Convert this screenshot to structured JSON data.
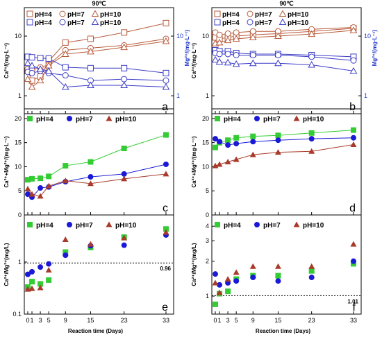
{
  "chart_data": [
    {
      "id": "a",
      "type": "line",
      "scale": "log",
      "title": "90℃",
      "letter": "a",
      "ylabel": "Ca²⁺/(mg·L⁻¹)",
      "y2label": "Mg²⁺/(mg·L⁻¹)",
      "ylim": [
        0.5,
        30
      ],
      "yticks": [
        1,
        10
      ],
      "yticklabels": [
        "1",
        "10"
      ],
      "y2ticks": [
        1,
        10
      ],
      "y2ticklabels": [
        "1",
        "10"
      ],
      "x": [
        0,
        1,
        3,
        5,
        9,
        15,
        23,
        33
      ],
      "series": [
        {
          "name": "pH=4",
          "group": "Ca",
          "color": "#b85a3a",
          "marker": "square-open",
          "values": [
            2.6,
            1.8,
            2.1,
            3.8,
            7.8,
            9.0,
            11.5,
            16.5
          ]
        },
        {
          "name": "pH=7",
          "group": "Ca",
          "color": "#b85a3a",
          "marker": "circle-open",
          "values": [
            2.8,
            2.7,
            3.0,
            3.3,
            5.8,
            6.3,
            7.0,
            9.0
          ]
        },
        {
          "name": "pH=10",
          "group": "Ca",
          "color": "#b85a3a",
          "marker": "triangle-open",
          "values": [
            1.9,
            1.4,
            1.8,
            3.2,
            5.0,
            5.5,
            6.5,
            8.2
          ]
        },
        {
          "name": "pH=4",
          "group": "Mg",
          "color": "#3c3cc8",
          "marker": "square-open",
          "values": [
            4.5,
            4.4,
            4.3,
            4.2,
            3.0,
            2.9,
            2.9,
            2.4
          ]
        },
        {
          "name": "pH=7",
          "group": "Mg",
          "color": "#3c3cc8",
          "marker": "circle-open",
          "values": [
            2.5,
            2.4,
            2.6,
            2.4,
            2.2,
            1.8,
            1.9,
            1.8
          ]
        },
        {
          "name": "pH=10",
          "group": "Mg",
          "color": "#3c3cc8",
          "marker": "triangle-open",
          "values": [
            3.5,
            3.2,
            2.8,
            2.6,
            1.4,
            1.5,
            1.5,
            1.4
          ]
        }
      ]
    },
    {
      "id": "b",
      "type": "line",
      "scale": "log",
      "title": "90℃",
      "letter": "b",
      "ylabel": "Ca²⁺/(mg·L⁻¹)",
      "y2label": "Mg²⁺/(mg·L⁻¹)",
      "ylim": [
        0.5,
        30
      ],
      "yticks": [
        1,
        10
      ],
      "yticklabels": [
        "1",
        "10"
      ],
      "y2ticks": [
        1,
        10
      ],
      "y2ticklabels": [
        "1",
        "10"
      ],
      "x": [
        0,
        1,
        3,
        5,
        9,
        15,
        23,
        33
      ],
      "series": [
        {
          "name": "pH=4",
          "group": "Ca",
          "color": "#b85a3a",
          "marker": "square-open",
          "values": [
            9.5,
            9.0,
            9.5,
            10.0,
            10.5,
            11.0,
            12.0,
            13.5
          ]
        },
        {
          "name": "pH=7",
          "group": "Ca",
          "color": "#b85a3a",
          "marker": "circle-open",
          "values": [
            11.5,
            10.5,
            11.0,
            11.5,
            12.0,
            12.0,
            13.0,
            14.0
          ]
        },
        {
          "name": "pH=10",
          "group": "Ca",
          "color": "#b85a3a",
          "marker": "triangle-open",
          "values": [
            7.5,
            7.8,
            8.5,
            9.0,
            9.5,
            10.0,
            10.8,
            12.5
          ]
        },
        {
          "name": "pH=4",
          "group": "Mg",
          "color": "#3c3cc8",
          "marker": "square-open",
          "values": [
            5.8,
            5.6,
            5.6,
            5.2,
            5.0,
            5.0,
            4.8,
            4.5
          ]
        },
        {
          "name": "pH=7",
          "group": "Mg",
          "color": "#3c3cc8",
          "marker": "circle-open",
          "values": [
            5.2,
            5.0,
            5.0,
            4.8,
            4.8,
            4.8,
            4.5,
            3.9
          ]
        },
        {
          "name": "pH=10",
          "group": "Mg",
          "color": "#3c3cc8",
          "marker": "triangle-open",
          "values": [
            4.0,
            3.7,
            3.6,
            3.4,
            3.5,
            3.5,
            3.3,
            2.6
          ]
        }
      ]
    },
    {
      "id": "c",
      "type": "line",
      "scale": "linear",
      "letter": "c",
      "ylabel": "Ca²⁺+Mg²⁺/(mg·L⁻¹)",
      "ylim": [
        0,
        22
      ],
      "yticks": [
        0,
        5,
        10,
        15,
        20
      ],
      "yticklabels": [
        "0",
        "5",
        "10",
        "15",
        "20"
      ],
      "x": [
        0,
        1,
        3,
        5,
        9,
        15,
        23,
        33
      ],
      "series": [
        {
          "name": "pH=4",
          "color": "#33cc33",
          "marker": "square",
          "values": [
            7.3,
            7.5,
            7.6,
            8.0,
            10.2,
            11.0,
            13.8,
            16.6
          ]
        },
        {
          "name": "pH=7",
          "color": "#1a1ad6",
          "marker": "circle",
          "values": [
            4.3,
            3.7,
            5.6,
            5.8,
            6.9,
            7.9,
            8.5,
            10.5
          ]
        },
        {
          "name": "pH=10",
          "color": "#a83a2a",
          "marker": "triangle",
          "values": [
            5.4,
            4.3,
            3.9,
            6.0,
            7.1,
            6.5,
            7.5,
            8.5
          ]
        }
      ]
    },
    {
      "id": "d",
      "type": "line",
      "scale": "linear",
      "letter": "d",
      "ylabel": "Ca²⁺+Mg²⁺/(mg·L⁻¹)",
      "ylim": [
        0,
        22
      ],
      "yticks": [
        0,
        5,
        10,
        15,
        20
      ],
      "yticklabels": [
        "0",
        "5",
        "10",
        "15",
        "20"
      ],
      "x": [
        0,
        1,
        3,
        5,
        9,
        15,
        23,
        33
      ],
      "series": [
        {
          "name": "pH=4",
          "color": "#33cc33",
          "marker": "square",
          "values": [
            14.0,
            15.0,
            15.5,
            16.0,
            16.3,
            16.5,
            17.0,
            17.6
          ]
        },
        {
          "name": "pH=7",
          "color": "#1a1ad6",
          "marker": "circle",
          "values": [
            15.8,
            15.2,
            14.5,
            14.8,
            15.2,
            15.5,
            15.8,
            16.0
          ]
        },
        {
          "name": "pH=10",
          "color": "#a83a2a",
          "marker": "triangle",
          "values": [
            10.2,
            10.5,
            11.0,
            11.5,
            12.5,
            13.0,
            13.2,
            14.6
          ]
        }
      ]
    },
    {
      "id": "e",
      "type": "scatter",
      "scale": "log",
      "letter": "e",
      "ylabel": "Ca²⁺/Mg²⁺(mg/L)",
      "xlabel": "Reaction time (Days)",
      "ylim": [
        0.1,
        8
      ],
      "yticks": [
        0.1,
        1
      ],
      "yticklabels": [
        "0.1",
        "1"
      ],
      "reference": {
        "value": 0.96,
        "label": "0.96"
      },
      "x": [
        0,
        1,
        3,
        5,
        9,
        15,
        23,
        33
      ],
      "xticklabels": [
        "0",
        "1",
        "3",
        "5",
        "9",
        "15",
        "23",
        "33"
      ],
      "series": [
        {
          "name": "pH=4",
          "color": "#33cc33",
          "marker": "square",
          "values": [
            0.33,
            0.42,
            0.38,
            0.45,
            1.55,
            1.9,
            3.0,
            4.3
          ]
        },
        {
          "name": "pH=7",
          "color": "#1a1ad6",
          "marker": "circle",
          "values": [
            0.58,
            0.65,
            0.8,
            0.92,
            1.35,
            2.05,
            2.1,
            3.3
          ]
        },
        {
          "name": "pH=10",
          "color": "#a83a2a",
          "marker": "triangle",
          "values": [
            0.3,
            0.31,
            0.32,
            0.7,
            2.7,
            2.2,
            2.9,
            3.7
          ]
        }
      ]
    },
    {
      "id": "f",
      "type": "scatter",
      "scale": "log",
      "letter": "f",
      "ylabel": "Ca²⁺/Mg²⁺(mg/L)",
      "xlabel": "Reaction time (Days)",
      "ylim": [
        0.7,
        5
      ],
      "yticks": [
        1,
        2,
        3,
        4
      ],
      "yticklabels": [
        "1",
        "2",
        "3",
        "4"
      ],
      "reference": {
        "value": 1.01,
        "label": "1.01"
      },
      "x": [
        0,
        1,
        3,
        5,
        9,
        15,
        23,
        33
      ],
      "xticklabels": [
        "0",
        "1",
        "3",
        "5",
        "9",
        "15",
        "23",
        "33"
      ],
      "series": [
        {
          "name": "pH=4",
          "color": "#33cc33",
          "marker": "square",
          "values": [
            0.85,
            1.05,
            1.1,
            1.4,
            1.5,
            1.5,
            1.65,
            1.9
          ]
        },
        {
          "name": "pH=7",
          "color": "#1a1ad6",
          "marker": "circle",
          "values": [
            1.55,
            1.25,
            1.3,
            1.35,
            1.45,
            1.35,
            1.45,
            2.0
          ]
        },
        {
          "name": "pH=10",
          "color": "#a83a2a",
          "marker": "triangle",
          "values": [
            1.3,
            1.07,
            1.4,
            1.6,
            1.8,
            1.8,
            1.8,
            2.8
          ]
        }
      ]
    }
  ]
}
